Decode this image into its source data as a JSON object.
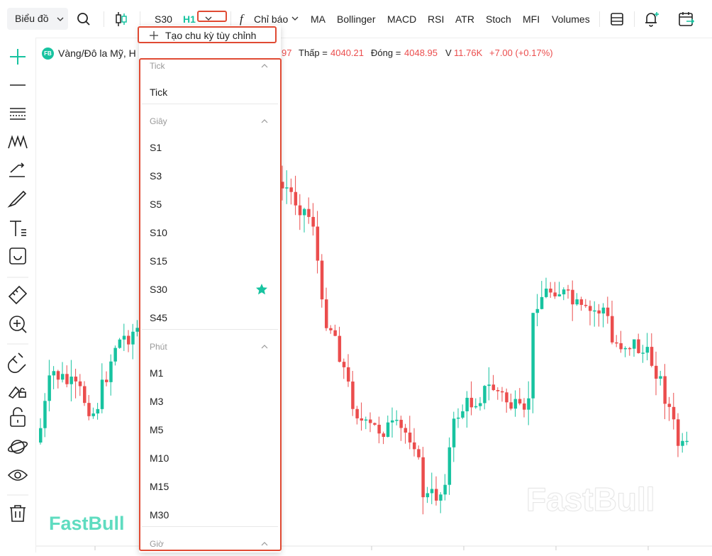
{
  "toolbar": {
    "chart_button": "Biểu đồ",
    "intervals": [
      "S30",
      "H1"
    ],
    "indicators_button": "Chỉ báo",
    "indicators": [
      "MA",
      "Bollinger",
      "MACD",
      "RSI",
      "ATR",
      "Stoch",
      "MFI",
      "Volumes"
    ]
  },
  "legend": {
    "badge": "FB",
    "symbol": "Vàng/Đô la Mỹ, H",
    "high_tail": "97",
    "low_label": "Thấp =",
    "low": "4040.21",
    "close_label": "Đóng =",
    "close": "4048.95",
    "volume_label": "V",
    "volume": "11.76K",
    "change": "+7.00 (+0.17%)"
  },
  "dropdown": {
    "create_custom": "Tạo chu kỳ tùy chỉnh",
    "groups": [
      {
        "title": "Tick",
        "items": [
          "Tick"
        ]
      },
      {
        "title": "Giây",
        "items": [
          "S1",
          "S3",
          "S5",
          "S10",
          "S15",
          "S30",
          "S45"
        ]
      },
      {
        "title": "Phút",
        "items": [
          "M1",
          "M3",
          "M5",
          "M10",
          "M15",
          "M30"
        ]
      },
      {
        "title": "Giờ"
      }
    ]
  },
  "watermark": "FastBull"
}
